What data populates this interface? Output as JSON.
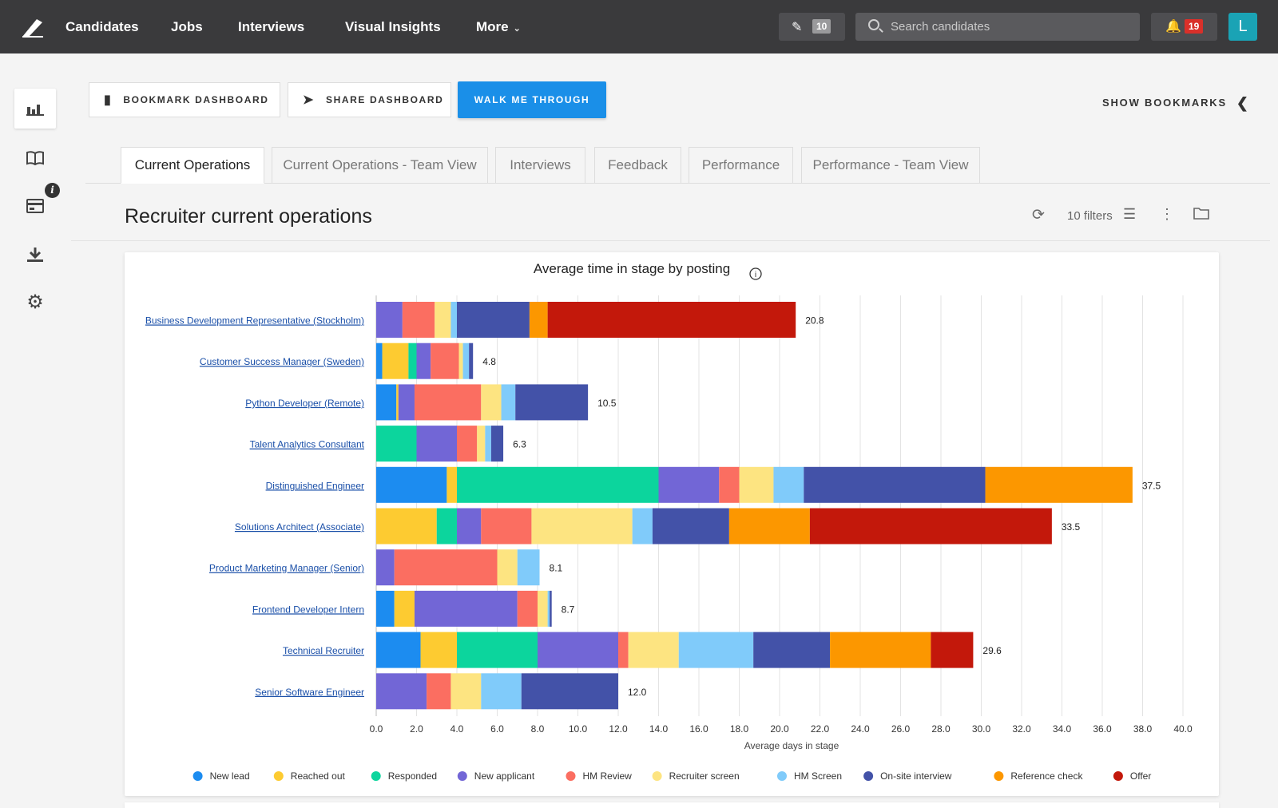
{
  "nav": {
    "items": [
      "Candidates",
      "Jobs",
      "Interviews",
      "Visual Insights",
      "More"
    ],
    "edit_count": "10",
    "search_placeholder": "Search candidates",
    "notification_count": "19",
    "avatar_letter": "L"
  },
  "actions": {
    "bookmark": "BOOKMARK DASHBOARD",
    "share": "SHARE DASHBOARD",
    "walk": "WALK ME THROUGH",
    "show_bookmarks": "SHOW BOOKMARKS"
  },
  "tabs": [
    "Current Operations",
    "Current Operations - Team View",
    "Interviews",
    "Feedback",
    "Performance",
    "Performance - Team View"
  ],
  "section": {
    "title": "Recruiter current operations",
    "filters": "10 filters"
  },
  "colors": {
    "accent": "#1a8fe8",
    "topbar": "#3a3a3c",
    "notification": "#d9302a"
  },
  "chart_data": {
    "type": "bar",
    "orientation": "horizontal",
    "stacked": true,
    "title": "Average time in stage by posting",
    "xlabel": "Average days in stage",
    "xlim": [
      0,
      40
    ],
    "xticks": [
      "0.0",
      "2.0",
      "4.0",
      "6.0",
      "8.0",
      "10.0",
      "12.0",
      "14.0",
      "16.0",
      "18.0",
      "20.0",
      "22.0",
      "24.0",
      "26.0",
      "28.0",
      "30.0",
      "32.0",
      "34.0",
      "36.0",
      "38.0",
      "40.0"
    ],
    "grid": true,
    "legend_position": "bottom",
    "categories": [
      "Business Development Representative (Stockholm)",
      "Customer Success Manager (Sweden)",
      "Python Developer (Remote)",
      "Talent Analytics Consultant",
      "Distinguished Engineer",
      "Solutions Architect (Associate)",
      "Product Marketing Manager (Senior)",
      "Frontend Developer Intern",
      "Technical Recruiter",
      "Senior Software Engineer"
    ],
    "totals": [
      "20.8",
      "4.8",
      "10.5",
      "6.3",
      "37.5",
      "33.5",
      "8.1",
      "8.7",
      "29.6",
      "12.0"
    ],
    "series": [
      {
        "name": "New lead",
        "color": "#1c8cf0",
        "values": [
          0,
          0.3,
          1.0,
          0,
          3.5,
          0,
          0,
          0.9,
          2.2,
          0
        ]
      },
      {
        "name": "Reached out",
        "color": "#fdcb31",
        "values": [
          0,
          1.3,
          0.1,
          0,
          0.5,
          3.0,
          0,
          1.0,
          1.8,
          0
        ]
      },
      {
        "name": "Responded",
        "color": "#0cd59d",
        "values": [
          0,
          0.4,
          0,
          2.0,
          10.0,
          1.0,
          0,
          0,
          4.0,
          0
        ]
      },
      {
        "name": "New applicant",
        "color": "#7266d6",
        "values": [
          1.3,
          0.7,
          0.8,
          2.0,
          3.0,
          1.2,
          0.9,
          5.1,
          4.0,
          2.5
        ]
      },
      {
        "name": "HM Review",
        "color": "#fb6e61",
        "values": [
          1.6,
          1.4,
          3.3,
          1.0,
          1.0,
          2.5,
          5.1,
          1.0,
          0.5,
          1.2
        ]
      },
      {
        "name": "Recruiter screen",
        "color": "#fde481",
        "values": [
          0.8,
          0.2,
          1.0,
          0.4,
          1.7,
          5.0,
          1.0,
          0.5,
          2.5,
          1.5
        ]
      },
      {
        "name": "HM Screen",
        "color": "#80cbfa",
        "values": [
          0.3,
          0.3,
          0.7,
          0.3,
          1.5,
          1.0,
          1.1,
          0.1,
          3.7,
          2.0
        ]
      },
      {
        "name": "On-site interview",
        "color": "#4352a8",
        "values": [
          3.6,
          0.2,
          3.6,
          0.6,
          9.0,
          3.8,
          0,
          0.1,
          3.8,
          4.8
        ]
      },
      {
        "name": "Reference check",
        "color": "#fc9700",
        "values": [
          0.9,
          0,
          0,
          0,
          7.3,
          4.0,
          0,
          0,
          5.0,
          0
        ]
      },
      {
        "name": "Offer",
        "color": "#c3180b",
        "values": [
          12.3,
          0,
          0,
          0,
          0,
          12.0,
          0,
          0,
          2.1,
          0
        ]
      }
    ]
  }
}
